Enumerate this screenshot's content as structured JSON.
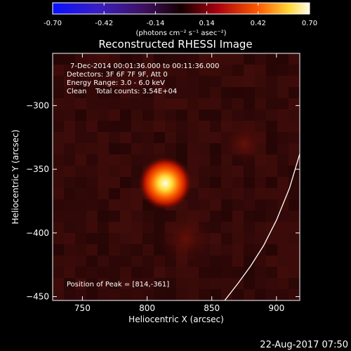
{
  "chart_data": {
    "type": "heatmap",
    "title": "Reconstructed RHESSI Image",
    "xlabel": "Heliocentric X (arcsec)",
    "ylabel": "Heliocentric Y (arcsec)",
    "xlim": [
      727,
      918
    ],
    "ylim": [
      -453,
      -259
    ],
    "x_ticks": [
      750,
      800,
      850,
      900
    ],
    "y_ticks": [
      -300,
      -350,
      -400,
      -450
    ],
    "colorbar": {
      "range": [
        -0.7,
        0.7
      ],
      "tick_labels": [
        "-0.70",
        "-0.42",
        "-0.14",
        "0.14",
        "0.42",
        "0.70"
      ],
      "tick_values": [
        -0.7,
        -0.42,
        -0.14,
        0.14,
        0.42,
        0.7
      ],
      "label": "(photons cm⁻² s⁻¹ asec⁻²)"
    },
    "annotations": [
      "7-Dec-2014 00:01:36.000 to 00:11:36.000",
      "Detectors: 3F 6F 7F 9F, Att 0",
      "Energy Range: 3.0 - 6.0 keV",
      "Clean    Total counts: 3.54E+04"
    ],
    "peak_label": "Position of Peak = [814,-361]",
    "peak": {
      "x": 814,
      "y": -361,
      "value": 0.7
    },
    "limb_curve": [
      [
        860,
        -453
      ],
      [
        870,
        -440
      ],
      [
        880,
        -426
      ],
      [
        890,
        -410
      ],
      [
        900,
        -390
      ],
      [
        910,
        -365
      ],
      [
        918,
        -338
      ]
    ],
    "timestamp": "22-Aug-2017 07:50"
  }
}
